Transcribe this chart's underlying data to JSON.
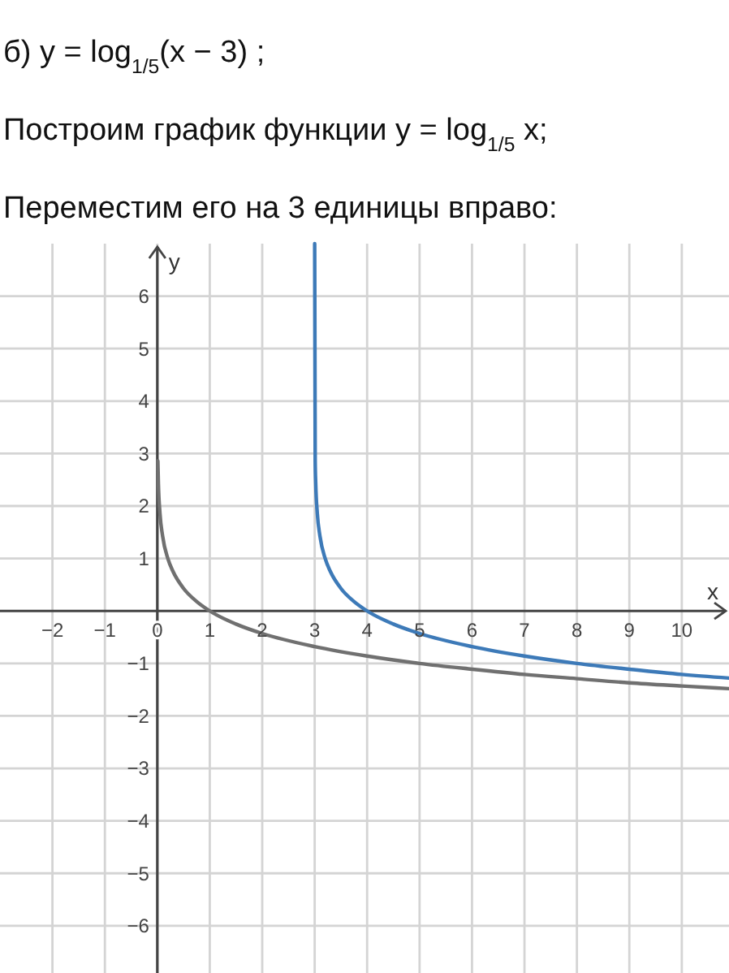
{
  "chart_data": {
    "type": "line",
    "title": "б) y = log$_{1/5}$(x − 3) ;",
    "subtitle": "Построим график функции y = log$_{1/5}$ x;",
    "annotations": [
      "Переместим его на 3 единицы вправо:"
    ],
    "xlabel": "x",
    "ylabel": "y",
    "xlim": [
      -3,
      10.9
    ],
    "ylim": [
      -6.9,
      7
    ],
    "xticks": [
      {
        "value": -2,
        "label": "−2"
      },
      {
        "value": -1,
        "label": "−1"
      },
      0,
      1,
      2,
      3,
      4,
      5,
      6,
      7,
      8,
      9,
      10
    ],
    "yticks": [
      {
        "value": -6,
        "label": "−6"
      },
      {
        "value": -5,
        "label": "−5"
      },
      {
        "value": -4,
        "label": "−4"
      },
      {
        "value": -3,
        "label": "−3"
      },
      {
        "value": -2,
        "label": "−2"
      },
      {
        "value": -1,
        "label": "−1"
      },
      1,
      2,
      3,
      4,
      5,
      6
    ],
    "grid": true,
    "series": [
      {
        "color": "#707070",
        "x": [
          0.01,
          0.02,
          0.05,
          0.1,
          0.2,
          0.3,
          0.5,
          0.75,
          1,
          1.5,
          2,
          3,
          4,
          5,
          6,
          7,
          8,
          9,
          10,
          10.9
        ],
        "values": [
          2.86,
          2.43,
          1.86,
          1.43,
          1.0,
          0.75,
          0.43,
          0.18,
          0,
          -0.25,
          -0.43,
          -0.68,
          -0.86,
          -1.0,
          -1.11,
          -1.21,
          -1.29,
          -1.37,
          -1.43,
          -1.48
        ]
      },
      {
        "color": "#3d7ab8",
        "x": [
          3.0,
          3.01,
          3.02,
          3.05,
          3.1,
          3.2,
          3.3,
          3.5,
          3.75,
          4,
          4.5,
          5,
          6,
          7,
          8,
          9,
          10,
          10.9
        ],
        "values": [
          7,
          2.86,
          2.43,
          1.86,
          1.43,
          1.0,
          0.75,
          0.43,
          0.18,
          0,
          -0.25,
          -0.43,
          -0.68,
          -0.86,
          -1.0,
          -1.11,
          -1.21,
          -1.28
        ]
      }
    ]
  }
}
